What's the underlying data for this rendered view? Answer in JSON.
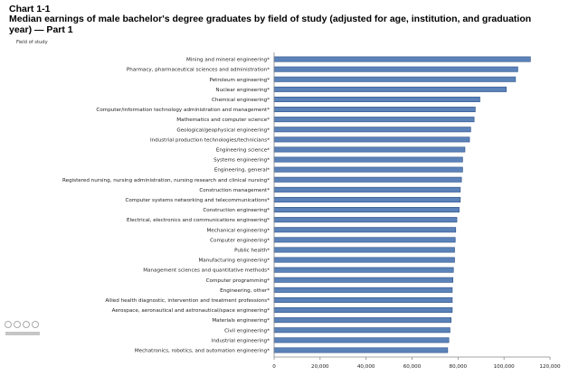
{
  "title": "Chart 1-1",
  "subtitle": "Median earnings of male bachelor's degree graduates by field of study (adjusted for age, institution, and graduation year) — Part 1",
  "y_axis_title": "Field of study",
  "colors": {
    "bar_fill": "#5b82b9",
    "bar_stroke": "#2f5287",
    "axis": "#888888"
  },
  "chart_data": {
    "type": "bar",
    "orientation": "horizontal",
    "title": "Chart 1-1",
    "subtitle": "Median earnings of male bachelor's degree graduates by field of study (adjusted for age, institution, and graduation year) — Part 1",
    "ylabel": "Field of study",
    "xlabel": "",
    "xlim": [
      0,
      120000
    ],
    "xticks": [
      "0",
      "20,000",
      "40,000",
      "60,000",
      "80,000",
      "100,000",
      "120,000"
    ],
    "grid": false,
    "categories": [
      "Mining and mineral engineering*",
      "Pharmacy, pharmaceutical sciences and administration*",
      "Petroleum engineering*",
      "Nuclear engineering*",
      "Chemical engineering*",
      "Computer/information technology administration and management*",
      "Mathematics and computer science*",
      "Geological/geophysical engineering*",
      "Industrial production technologies/technicians*",
      "Engineering science*",
      "Systems engineering*",
      "Engineering, general*",
      "Registered nursing, nursing administration, nursing research and clinical nursing*",
      "Construction management*",
      "Computer systems networking and telecommunications*",
      "Construction engineering*",
      "Electrical, electronics and communications engineering*",
      "Mechanical engineering*",
      "Computer engineering*",
      "Public health*",
      "Manufacturing engineering*",
      "Management sciences and quantitative methods*",
      "Computer programming*",
      "Engineering, other*",
      "Allied health diagnostic, intervention and treatment professions*",
      "Aerospace, aeronautical and astronautical/space engineering*",
      "Materials engineering*",
      "Civil engineering*",
      "Industrial engineering*",
      "Mechatronics, robotics, and automation engineering*"
    ],
    "values": [
      111500,
      106000,
      105000,
      101000,
      89500,
      87500,
      87000,
      85500,
      85000,
      83000,
      82000,
      82000,
      81500,
      81000,
      81000,
      80500,
      79500,
      79000,
      78800,
      78500,
      78500,
      78000,
      77800,
      77500,
      77500,
      77500,
      77000,
      76500,
      76000,
      75500
    ]
  }
}
